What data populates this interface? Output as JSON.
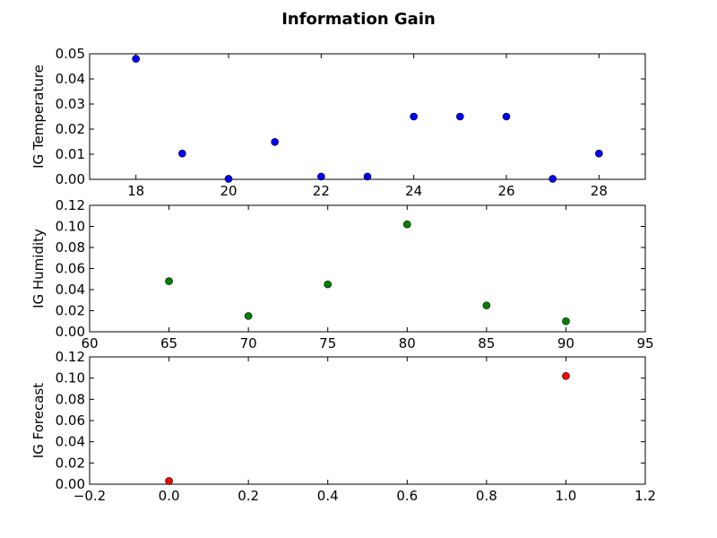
{
  "chart_data": {
    "title": "Information Gain",
    "layout": "3 stacked subplots",
    "panels": [
      {
        "type": "scatter",
        "ylabel": "IG Temperature",
        "color": "#0000ff",
        "xlim": [
          17,
          29
        ],
        "ylim": [
          0,
          0.05
        ],
        "xticks": [
          "18",
          "20",
          "22",
          "24",
          "26",
          "28"
        ],
        "yticks": [
          "0.00",
          "0.01",
          "0.02",
          "0.03",
          "0.04",
          "0.05"
        ],
        "x": [
          18,
          19,
          20,
          21,
          22,
          23,
          24,
          25,
          26,
          27,
          28
        ],
        "y": [
          0.048,
          0.0103,
          0.0002,
          0.0149,
          0.0011,
          0.0011,
          0.025,
          0.025,
          0.025,
          0.0002,
          0.0103
        ]
      },
      {
        "type": "scatter",
        "ylabel": "IG Humidity",
        "color": "#008000",
        "xlim": [
          60,
          95
        ],
        "ylim": [
          0,
          0.12
        ],
        "xticks": [
          "60",
          "65",
          "70",
          "75",
          "80",
          "85",
          "90",
          "95"
        ],
        "yticks": [
          "0.00",
          "0.02",
          "0.04",
          "0.06",
          "0.08",
          "0.10",
          "0.12"
        ],
        "x": [
          65,
          70,
          75,
          80,
          85,
          90
        ],
        "y": [
          0.048,
          0.015,
          0.045,
          0.102,
          0.025,
          0.01
        ]
      },
      {
        "type": "scatter",
        "ylabel": "IG Forecast",
        "color": "#ff0000",
        "xlim": [
          -0.2,
          1.2
        ],
        "ylim": [
          0,
          0.12
        ],
        "xticks": [
          "−0.2",
          "0.0",
          "0.2",
          "0.4",
          "0.6",
          "0.8",
          "1.0",
          "1.2"
        ],
        "yticks": [
          "0.00",
          "0.02",
          "0.04",
          "0.06",
          "0.08",
          "0.10",
          "0.12"
        ],
        "x": [
          0.0,
          1.0
        ],
        "y": [
          0.003,
          0.102
        ]
      }
    ]
  }
}
